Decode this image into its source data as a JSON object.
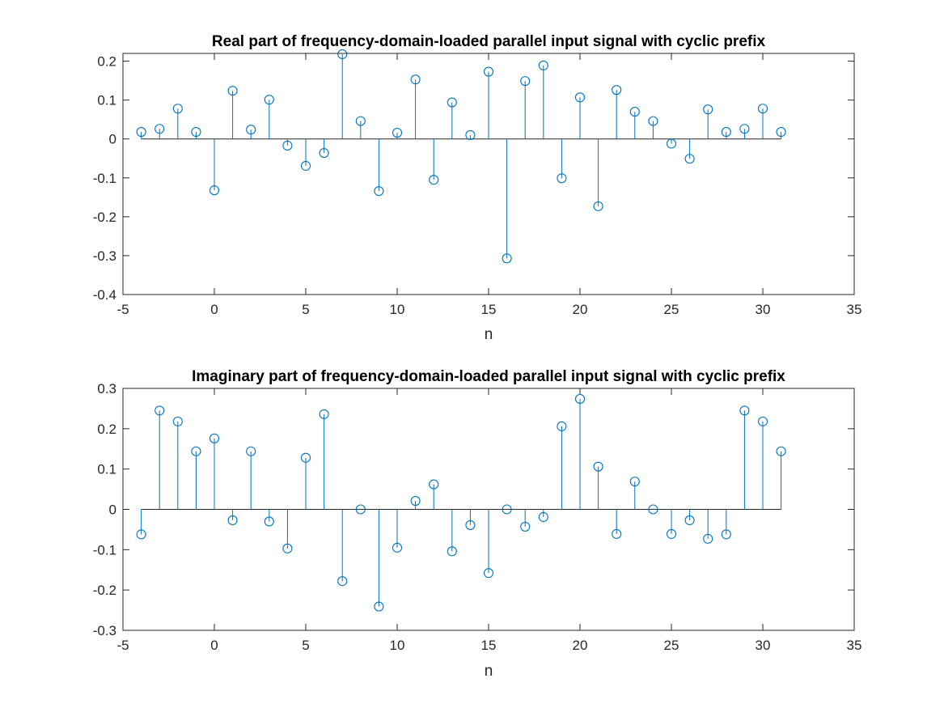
{
  "chart_data": [
    {
      "type": "stem",
      "title": "Real part of frequency-domain-loaded parallel input signal with cyclic prefix",
      "xlabel": "n",
      "ylabel": "",
      "xlim": [
        -5,
        35
      ],
      "ylim": [
        -0.4,
        0.22
      ],
      "xticks": [
        -5,
        0,
        5,
        10,
        15,
        20,
        25,
        30,
        35
      ],
      "yticks": [
        -0.4,
        -0.3,
        -0.2,
        -0.1,
        0,
        0.1,
        0.2
      ],
      "x": [
        -4,
        -3,
        -2,
        -1,
        0,
        1,
        2,
        3,
        4,
        5,
        6,
        7,
        8,
        9,
        10,
        11,
        12,
        13,
        14,
        15,
        16,
        17,
        18,
        19,
        20,
        21,
        22,
        23,
        24,
        25,
        26,
        27,
        28,
        29,
        30,
        31
      ],
      "values": [
        0.018,
        0.026,
        0.078,
        0.018,
        -0.132,
        0.124,
        0.024,
        0.101,
        -0.017,
        -0.069,
        -0.036,
        0.218,
        0.046,
        -0.134,
        0.016,
        0.153,
        -0.105,
        0.094,
        0.01,
        0.173,
        -0.307,
        0.149,
        0.189,
        -0.101,
        0.107,
        -0.173,
        0.126,
        0.07,
        0.046,
        -0.012,
        -0.051,
        0.076,
        0.018,
        0.026,
        0.078,
        0.018
      ],
      "color": "#0072BD",
      "grid": false
    },
    {
      "type": "stem",
      "title": "Imaginary part of frequency-domain-loaded parallel input signal with cyclic prefix",
      "xlabel": "n",
      "ylabel": "",
      "xlim": [
        -5,
        35
      ],
      "ylim": [
        -0.3,
        0.3
      ],
      "xticks": [
        -5,
        0,
        5,
        10,
        15,
        20,
        25,
        30,
        35
      ],
      "yticks": [
        -0.3,
        -0.2,
        -0.1,
        0,
        0.1,
        0.2,
        0.3
      ],
      "x": [
        -4,
        -3,
        -2,
        -1,
        0,
        1,
        2,
        3,
        4,
        5,
        6,
        7,
        8,
        9,
        10,
        11,
        12,
        13,
        14,
        15,
        16,
        17,
        18,
        19,
        20,
        21,
        22,
        23,
        24,
        25,
        26,
        27,
        28,
        29,
        30,
        31
      ],
      "values": [
        -0.062,
        0.245,
        0.218,
        0.144,
        0.176,
        -0.027,
        0.144,
        -0.03,
        -0.097,
        0.128,
        0.236,
        -0.178,
        0.0,
        -0.241,
        -0.095,
        0.021,
        0.062,
        -0.104,
        -0.039,
        -0.158,
        0.0,
        -0.043,
        -0.019,
        0.206,
        0.274,
        0.106,
        -0.061,
        0.069,
        0.0,
        -0.061,
        -0.027,
        -0.073,
        -0.062,
        0.245,
        0.218,
        0.144
      ],
      "color": "#0072BD",
      "grid": false
    }
  ]
}
